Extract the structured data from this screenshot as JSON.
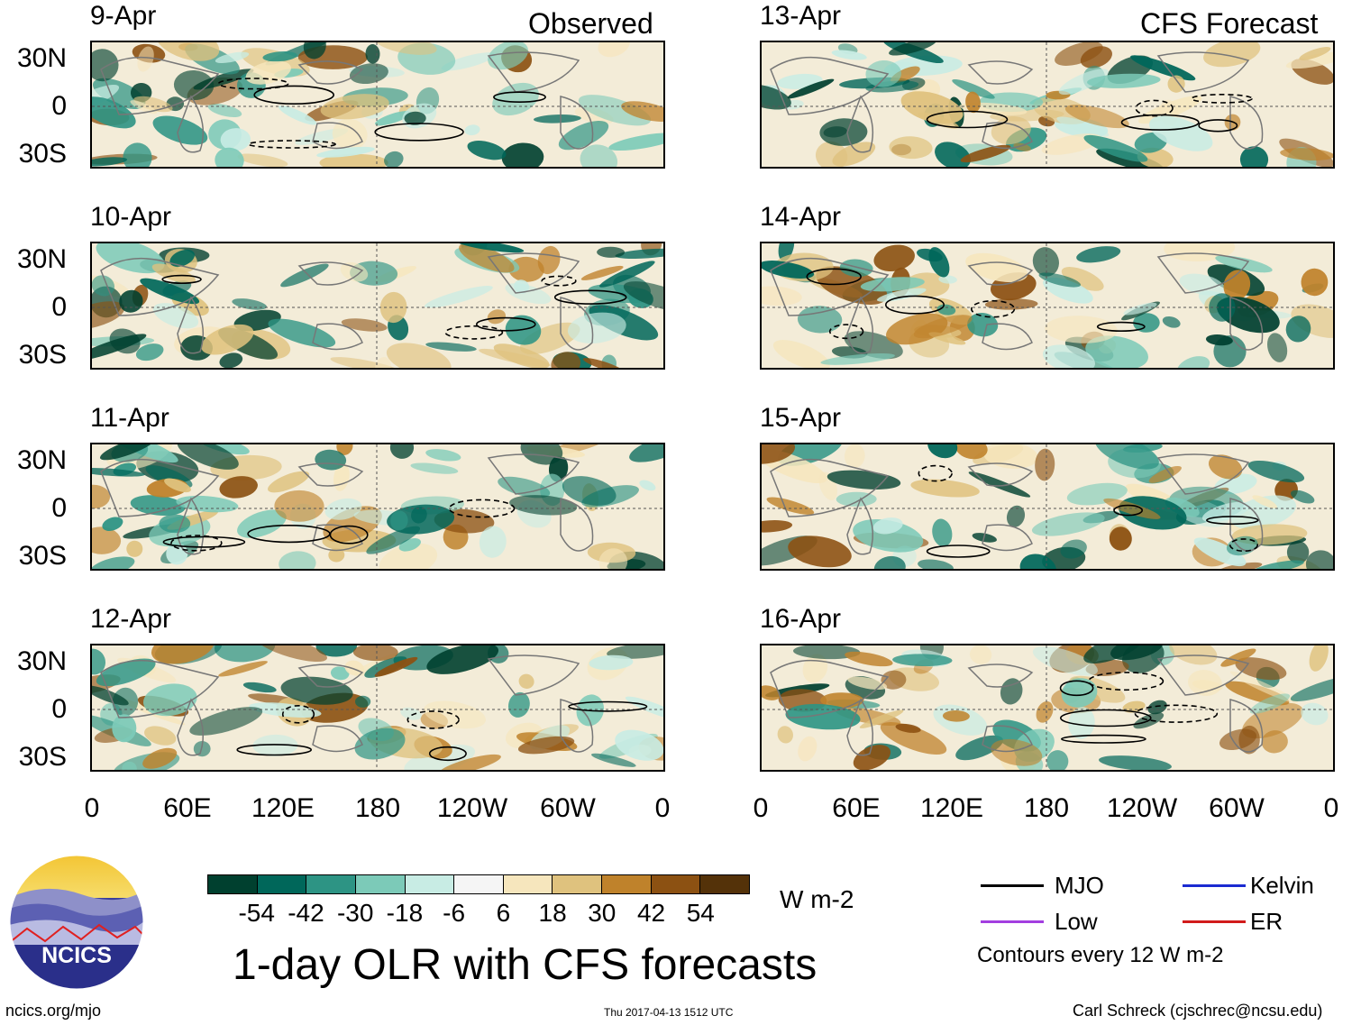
{
  "headers": {
    "observed": "Observed",
    "forecast": "CFS Forecast"
  },
  "panels": {
    "left": [
      {
        "date": "9-Apr"
      },
      {
        "date": "10-Apr"
      },
      {
        "date": "11-Apr"
      },
      {
        "date": "12-Apr"
      }
    ],
    "right": [
      {
        "date": "13-Apr"
      },
      {
        "date": "14-Apr"
      },
      {
        "date": "15-Apr"
      },
      {
        "date": "16-Apr"
      }
    ]
  },
  "y_ticks": [
    "30N",
    "0",
    "30S"
  ],
  "x_ticks": [
    "0",
    "60E",
    "120E",
    "180",
    "120W",
    "60W",
    "0"
  ],
  "colorbar": {
    "colors": [
      "#00402f",
      "#00675a",
      "#2d9484",
      "#7ccab8",
      "#c8ece4",
      "#f5f5f5",
      "#f6e6bd",
      "#dfc27e",
      "#bf822b",
      "#8c5112",
      "#543209"
    ],
    "labels": [
      "-54",
      "-42",
      "-30",
      "-18",
      "-6",
      "6",
      "18",
      "30",
      "42",
      "54"
    ],
    "units": "W m-2"
  },
  "legend": {
    "items": [
      {
        "label": "MJO",
        "color": "#000000"
      },
      {
        "label": "Kelvin",
        "color": "#1b2bd1"
      },
      {
        "label": "Low",
        "color": "#a33ee0"
      },
      {
        "label": "ER",
        "color": "#d11b1b"
      }
    ],
    "note": "Contours every 12 W m-2"
  },
  "title": "1-day OLR with CFS forecasts",
  "logo_text": "NCICS",
  "footer": {
    "url": "ncics.org/mjo",
    "timestamp": "Thu 2017-04-13 1512 UTC",
    "credit": "Carl Schreck (cjschrec@ncsu.edu)"
  }
}
